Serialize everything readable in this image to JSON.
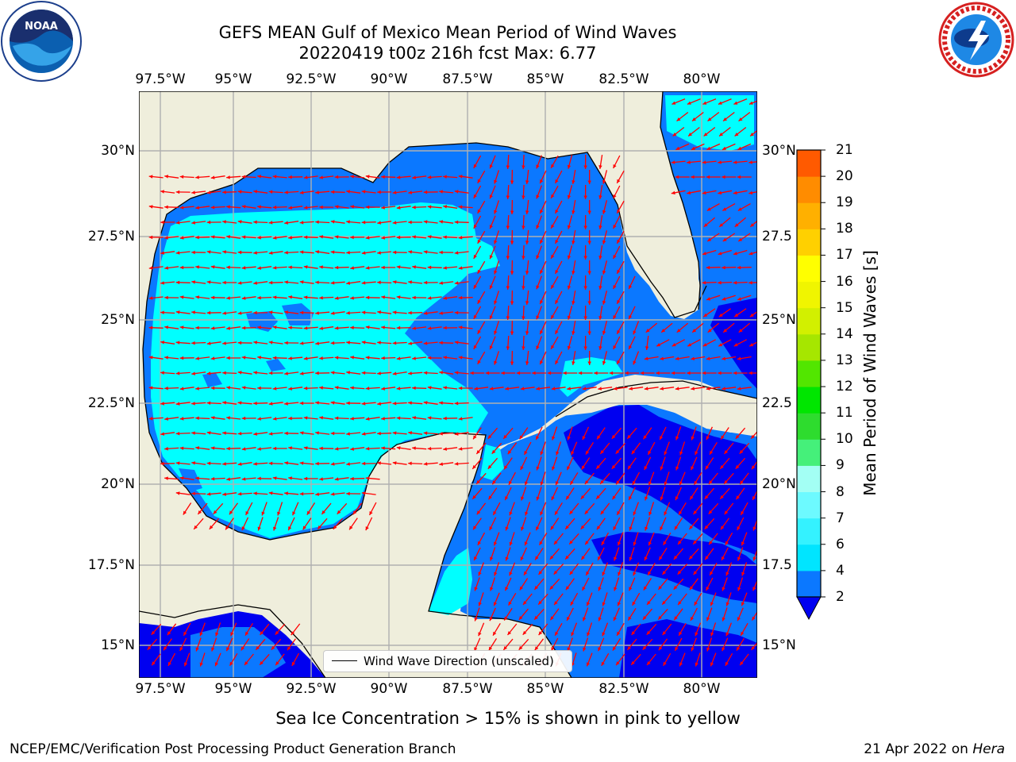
{
  "title_line1": "GEFS MEAN Gulf of Mexico Mean Period of Wind Waves",
  "title_line2": "20220419 t00z 216h fcst   Max: 6.77",
  "lon_ticks": [
    "97.5°W",
    "95°W",
    "92.5°W",
    "90°W",
    "87.5°W",
    "85°W",
    "82.5°W",
    "80°W"
  ],
  "lat_ticks_left": [
    "30°N",
    "27.5°N",
    "25°N",
    "22.5°N",
    "20°N",
    "17.5°N",
    "15°N"
  ],
  "lat_ticks_right": [
    "30°N",
    "27.5",
    "25°N",
    "22.5",
    "20°N",
    "17.5",
    "15°N"
  ],
  "legend_text": "Wind Wave Direction (unscaled)",
  "colorbar": {
    "label": "Mean Period of Wind Waves [s]",
    "ticks": [
      "2",
      "4",
      "6",
      "7",
      "8",
      "9",
      "10",
      "11",
      "12",
      "13",
      "14",
      "15",
      "16",
      "17",
      "18",
      "19",
      "20",
      "21"
    ],
    "colors": [
      "#0b78ff",
      "#00e5ff",
      "#34f2ff",
      "#6dfaff",
      "#a3fff4",
      "#45f07a",
      "#2edc2e",
      "#00e600",
      "#52e600",
      "#a6e600",
      "#d2f000",
      "#f0f500",
      "#ffff00",
      "#ffd000",
      "#ffb000",
      "#ff8c00",
      "#ff5a00",
      "#ff2400",
      "#ff0000"
    ],
    "extend_min_color": "#0000f0"
  },
  "note": "Sea Ice Concentration > 15% is shown in pink to yellow",
  "credit": "NCEP/EMC/Verification Post Processing Product Generation Branch",
  "date_text": "21 Apr 2022 on",
  "machine": "Hera",
  "noaa_logo_text": "NOAA",
  "colors": {
    "land": "#efeedc",
    "water_light": "#00ffff",
    "water_mid": "#0b78ff",
    "water_deep": "#0000f0",
    "arrow": "#ff0000",
    "grid": "#b0b0b0"
  }
}
